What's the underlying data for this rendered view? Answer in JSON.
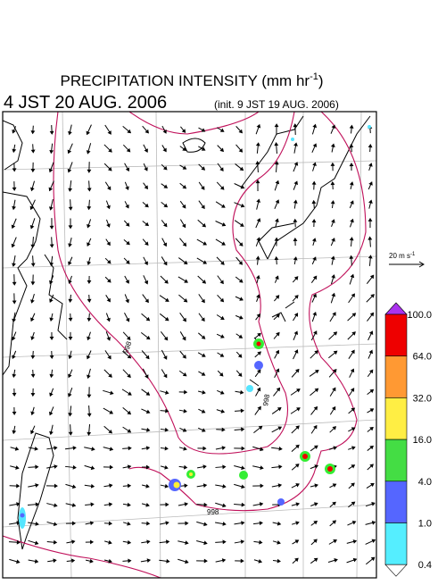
{
  "header": {
    "title": "PRECIPITATION INTENSITY (mm hr",
    "title_sup": "-1",
    "title_end": ")",
    "valid_time": "4 JST 20 AUG. 2006",
    "init": "(init. 9 JST 19 AUG. 2006)"
  },
  "reference_arrow": {
    "label": "20 m s",
    "label_sup": "-1"
  },
  "colorbar": {
    "labels": [
      "100.0",
      "64.0",
      "32.0",
      "16.0",
      "4.0",
      "1.0",
      "0.4"
    ]
  },
  "contour_labels": [
    "998",
    "998",
    "998"
  ]
}
